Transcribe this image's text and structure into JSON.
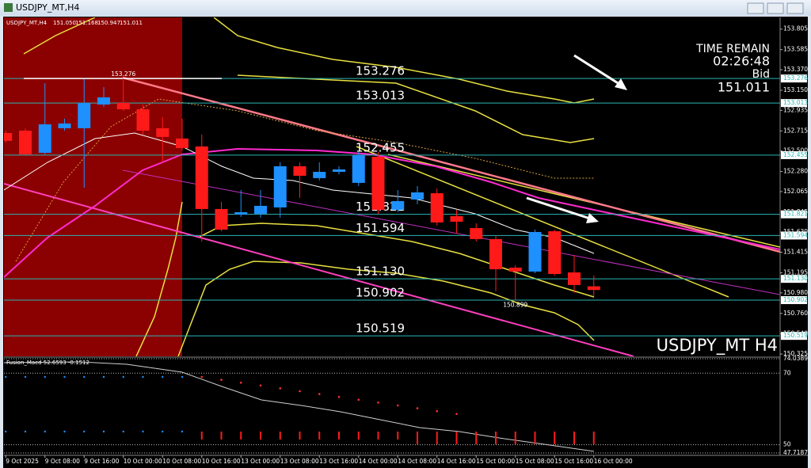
{
  "window_title": "USDJPY_MT,H4",
  "chart_data": {
    "type": "candlestick",
    "symbol_label": "USDJPY_MT,H4",
    "last_labels": [
      "151.050",
      "151.168",
      "150.947",
      "151.011"
    ],
    "watermark": "USDJPY_MT H4",
    "timer_label": "TIME REMAIN",
    "timer_value": "02:26:48",
    "bid_label": "Bid",
    "categories": [
      "9 Oct 2025",
      null,
      "9 Oct 08:00",
      null,
      "9 Oct 16:00",
      null,
      "10 Oct 00:00",
      null,
      "10 Oct 08:00",
      null,
      "10 Oct 16:00",
      null,
      "13 Oct 00:00",
      null,
      "13 Oct 08:00",
      null,
      "13 Oct 16:00",
      null,
      "14 Oct 00:00",
      null,
      "14 Oct 08:00",
      null,
      "14 Oct 16:00",
      null,
      "15 Oct 00:00",
      null,
      "15 Oct 08:00",
      null,
      "15 Oct 16:00",
      null,
      "16 Oct 00:00"
    ],
    "open": [
      152.692,
      152.717,
      152.48,
      152.743,
      152.743,
      152.997,
      153.014,
      152.946,
      152.743,
      152.633,
      152.548,
      151.878,
      151.818,
      151.827,
      151.895,
      152.336,
      152.209,
      152.276,
      152.158,
      152.438,
      151.869,
      151.98,
      152.047,
      151.802,
      151.674,
      151.556,
      151.25,
      151.208,
      151.64,
      151.199,
      151.05
    ],
    "high": [
      152.717,
      152.74,
      153.226,
      152.845,
      153.269,
      153.184,
      153.276,
      152.997,
      152.862,
      152.845,
      152.675,
      151.954,
      152.081,
      152.081,
      152.378,
      152.378,
      152.378,
      152.336,
      152.488,
      152.488,
      152.081,
      152.124,
      152.098,
      151.869,
      151.725,
      151.59,
      151.276,
      151.657,
      151.657,
      151.386,
      151.168
    ],
    "low": [
      152.59,
      152.46,
      152.463,
      152.717,
      152.107,
      152.972,
      152.929,
      152.675,
      152.378,
      152.505,
      151.53,
      151.64,
      151.793,
      151.785,
      151.785,
      151.997,
      152.183,
      152.251,
      152.124,
      151.827,
      151.844,
      151.929,
      151.7,
      151.615,
      151.53,
      150.996,
      150.899,
      151.191,
      151.166,
      150.979,
      150.947
    ],
    "close": [
      152.608,
      152.463,
      152.785,
      152.794,
      153.014,
      153.074,
      152.946,
      152.717,
      152.65,
      152.531,
      151.878,
      151.657,
      151.844,
      151.912,
      152.336,
      152.234,
      152.276,
      152.302,
      152.454,
      151.869,
      151.963,
      152.056,
      151.734,
      151.742,
      151.556,
      151.233,
      151.208,
      151.632,
      151.182,
      151.064,
      151.011
    ],
    "up_color": "#1e90ff",
    "down_color": "#ff1a1a",
    "ylim": [
      150.3,
      153.93
    ],
    "yticks": [
      153.805,
      153.585,
      {
        "value": 153.37,
        "label": "153.370"
      },
      {
        "value": 153.15,
        "label": "153.150"
      },
      152.935,
      152.715,
      {
        "value": 152.5,
        "label": "152.500"
      },
      {
        "value": 152.28,
        "label": "152.280"
      },
      152.065,
      151.845,
      {
        "value": 151.63,
        "label": "151.630"
      },
      151.415,
      151.195,
      {
        "value": 150.98,
        "label": "150.980"
      },
      {
        "value": 150.76,
        "label": "150.760"
      },
      {
        "value": 150.54,
        "label": "150.540"
      },
      150.325
    ],
    "levels": [
      153.276,
      153.013,
      152.455,
      151.821,
      151.594,
      {
        "value": 151.13,
        "label": "151.130"
      },
      150.902,
      150.519
    ],
    "level_color": "#2bb5b5"
  },
  "indicator": {
    "name": "Fusion_Macd 52.6593 -0.1512",
    "ylim": [
      47.7187,
      74.0389
    ],
    "yticks": [
      74.0389,
      70,
      50,
      47.7187
    ]
  }
}
